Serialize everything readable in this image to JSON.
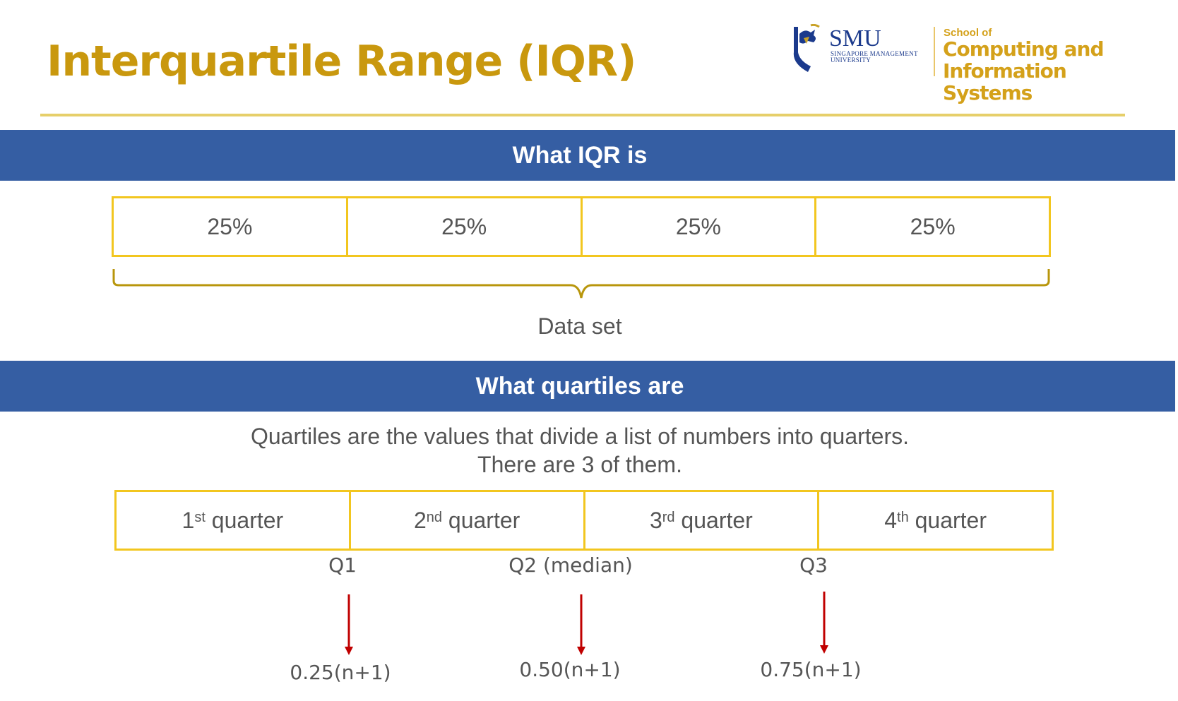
{
  "title": "Interquartile Range (IQR)",
  "logo": {
    "smu": "SMU",
    "smu_sub_1": "SINGAPORE MANAGEMENT",
    "smu_sub_2": "UNIVERSITY",
    "school_small": "School of",
    "school_line1": "Computing and",
    "school_line2": "Information Systems"
  },
  "sections": {
    "iqr_header": "What IQR is",
    "quartiles_header": "What quartiles are"
  },
  "iqr_segments": [
    "25%",
    "25%",
    "25%",
    "25%"
  ],
  "dataset_label": "Data set",
  "description": {
    "line1": "Quartiles are the values that divide a list of numbers into quarters.",
    "line2": "There are 3 of them."
  },
  "quarters": [
    {
      "num": "1",
      "suffix": "st",
      "word": "quarter"
    },
    {
      "num": "2",
      "suffix": "nd",
      "word": "quarter"
    },
    {
      "num": "3",
      "suffix": "rd",
      "word": "quarter"
    },
    {
      "num": "4",
      "suffix": "th",
      "word": "quarter"
    }
  ],
  "quartile_labels": [
    "Q1",
    "Q2 (median)",
    "Q3"
  ],
  "formulas": [
    "0.25(n+1)",
    "0.50(n+1)",
    "0.75(n+1)"
  ],
  "colors": {
    "title": "#C9980E",
    "band": "#355EA3",
    "box_border": "#F2C61F",
    "brace": "#B8960C",
    "arrow": "#C00000",
    "text": "#555555"
  }
}
